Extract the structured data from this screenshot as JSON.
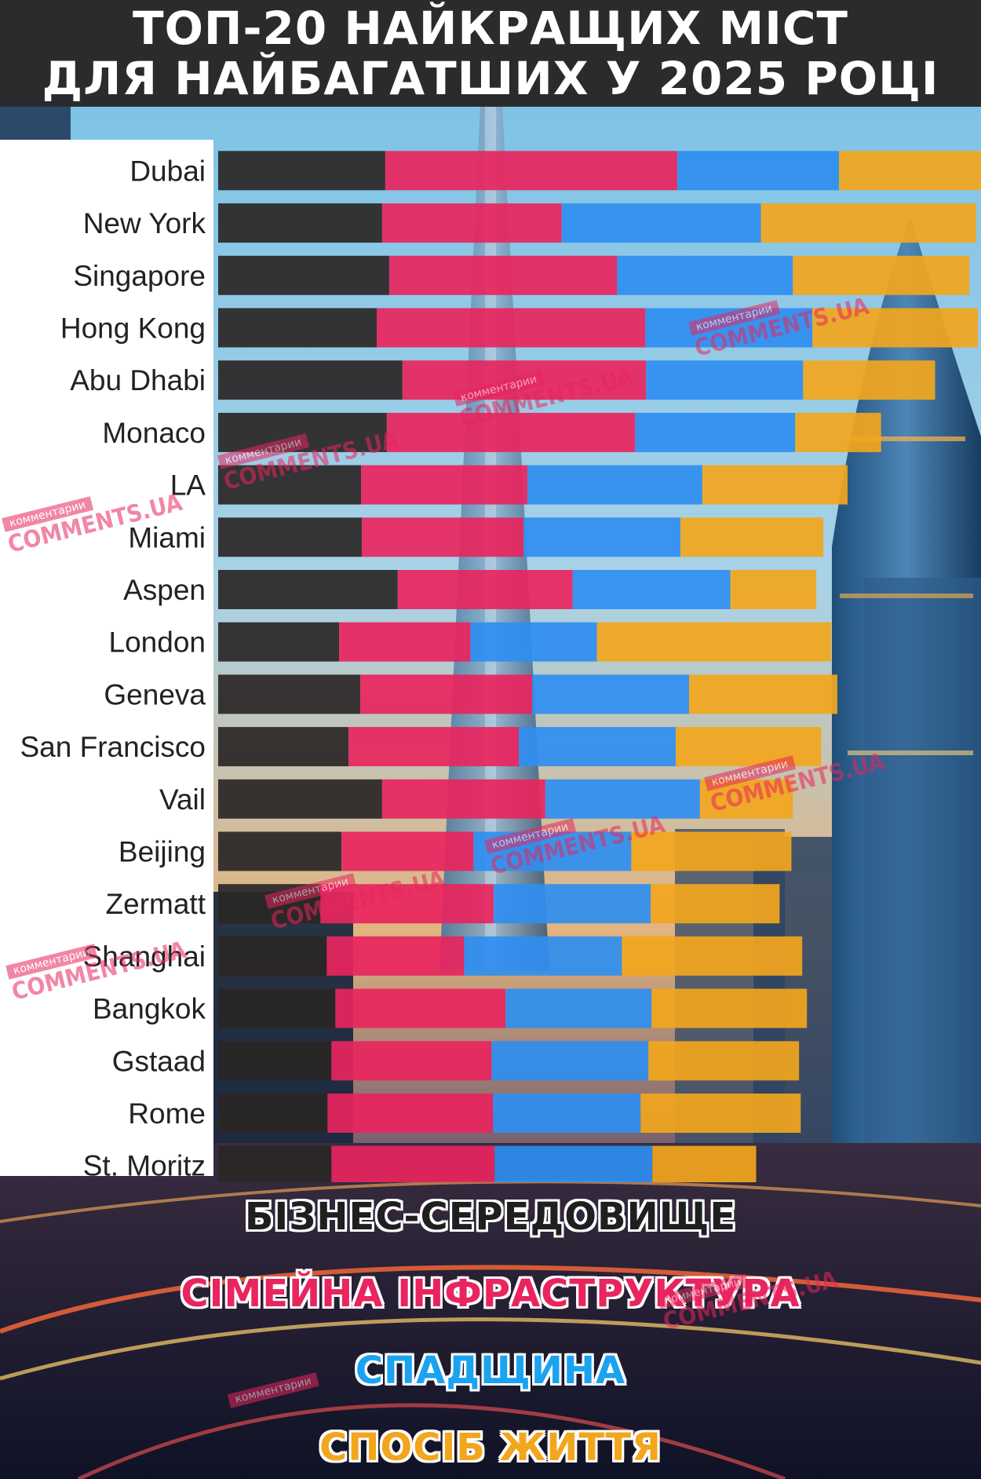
{
  "header": {
    "line1": "ТОП-20 НАЙКРАЩИХ МІСТ",
    "line2": "ДЛЯ НАЙБАГАТШИХ У 2025 РОЦІ"
  },
  "legend": {
    "business": "БІЗНЕС-СЕРЕДОВИЩЕ",
    "family": "СІМЕЙНА ІНФРАСТРУКТУРА",
    "heritage": "СПАДЩИНА",
    "lifestyle": "СПОСІБ ЖИТТЯ"
  },
  "watermark": {
    "top": "комментарии",
    "main": "COMMENTS.UA"
  },
  "chart_data": {
    "type": "bar",
    "orientation": "horizontal",
    "stacked": true,
    "title": "ТОП-20 НАЙКРАЩИХ МІСТ ДЛЯ НАЙБАГАТШИХ У 2025 РОЦІ",
    "categories": [
      "Dubai",
      "New York",
      "Singapore",
      "Hong Kong",
      "Abu Dhabi",
      "Monaco",
      "LA",
      "Miami",
      "Aspen",
      "London",
      "Geneva",
      "San Francisco",
      "Vail",
      "Beijing",
      "Zermatt",
      "Shanghai",
      "Bangkok",
      "Gstaad",
      "Rome",
      "St. Moritz"
    ],
    "series": [
      {
        "name": "БІЗНЕС-СЕРЕДОВИЩЕ",
        "color": "#2a2626",
        "values": [
          21.4,
          21.0,
          21.9,
          20.3,
          23.6,
          21.6,
          18.3,
          18.4,
          23.0,
          15.5,
          18.2,
          16.7,
          21.0,
          15.8,
          13.1,
          13.9,
          15.0,
          14.5,
          14.0,
          14.5
        ]
      },
      {
        "name": "СІМЕЙНА ІНФРАСТРУКТУРА",
        "color": "#e8255e",
        "values": [
          37.4,
          23.0,
          29.2,
          34.4,
          31.2,
          31.8,
          21.3,
          20.7,
          22.4,
          16.8,
          22.0,
          21.8,
          20.9,
          16.9,
          22.2,
          17.6,
          21.8,
          20.5,
          21.2,
          20.9
        ]
      },
      {
        "name": "СПАДЩИНА",
        "color": "#2f8ef0",
        "values": [
          20.7,
          25.5,
          22.5,
          21.4,
          20.1,
          20.5,
          22.4,
          20.1,
          20.2,
          16.2,
          20.1,
          20.1,
          19.8,
          20.2,
          20.1,
          20.2,
          18.7,
          20.1,
          18.9,
          20.2
        ]
      },
      {
        "name": "СПОСІБ ЖИТТЯ",
        "color": "#f2a61d",
        "values": [
          21.5,
          27.6,
          22.6,
          21.2,
          16.9,
          11.0,
          18.6,
          18.3,
          11.0,
          30.0,
          19.0,
          18.6,
          11.9,
          20.5,
          16.5,
          23.1,
          19.9,
          19.3,
          20.5,
          13.3
        ]
      }
    ]
  }
}
